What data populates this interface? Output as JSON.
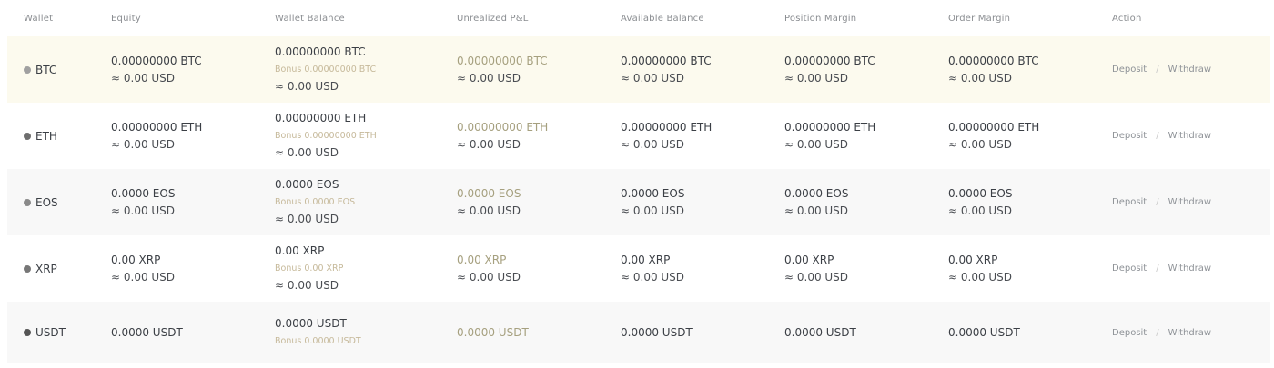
{
  "headers": {
    "wallet": "Wallet",
    "equity": "Equity",
    "wallet_balance": "Wallet Balance",
    "unrealized_pnl": "Unrealized P&L",
    "available_balance": "Available Balance",
    "position_margin": "Position Margin",
    "order_margin": "Order Margin",
    "action": "Action"
  },
  "colors": {
    "dot": "#a0a0a0",
    "dot_dark": "#555555",
    "highlight": "#fcfaee",
    "bonus": "#c6b99a"
  },
  "rows": [
    {
      "coin": "BTC",
      "equity": "0.00000000 BTC",
      "equity_usd": "≈ 0.00 USD",
      "wallet_balance": "0.00000000 BTC",
      "bonus": "Bonus 0.00000000 BTC",
      "wallet_usd": "≈ 0.00 USD",
      "pnl": "0.00000000 BTC",
      "pnl_usd": "≈ 0.00 USD",
      "available": "0.00000000 BTC",
      "available_usd": "≈ 0.00 USD",
      "position_margin": "0.00000000 BTC",
      "position_margin_usd": "≈ 0.00 USD",
      "order_margin": "0.00000000 BTC",
      "order_margin_usd": "≈ 0.00 USD",
      "deposit": "Deposit",
      "withdraw": "Withdraw",
      "separator": "/"
    },
    {
      "coin": "ETH",
      "equity": "0.00000000 ETH",
      "equity_usd": "≈ 0.00 USD",
      "wallet_balance": "0.00000000 ETH",
      "bonus": "Bonus 0.00000000 ETH",
      "wallet_usd": "≈ 0.00 USD",
      "pnl": "0.00000000 ETH",
      "pnl_usd": "≈ 0.00 USD",
      "available": "0.00000000 ETH",
      "available_usd": "≈ 0.00 USD",
      "position_margin": "0.00000000 ETH",
      "position_margin_usd": "≈ 0.00 USD",
      "order_margin": "0.00000000 ETH",
      "order_margin_usd": "≈ 0.00 USD",
      "deposit": "Deposit",
      "withdraw": "Withdraw",
      "separator": "/"
    },
    {
      "coin": "EOS",
      "equity": "0.0000 EOS",
      "equity_usd": "≈ 0.00 USD",
      "wallet_balance": "0.0000 EOS",
      "bonus": "Bonus 0.0000 EOS",
      "wallet_usd": "≈ 0.00 USD",
      "pnl": "0.0000 EOS",
      "pnl_usd": "≈ 0.00 USD",
      "available": "0.0000 EOS",
      "available_usd": "≈ 0.00 USD",
      "position_margin": "0.0000 EOS",
      "position_margin_usd": "≈ 0.00 USD",
      "order_margin": "0.0000 EOS",
      "order_margin_usd": "≈ 0.00 USD",
      "deposit": "Deposit",
      "withdraw": "Withdraw",
      "separator": "/"
    },
    {
      "coin": "XRP",
      "equity": "0.00 XRP",
      "equity_usd": "≈ 0.00 USD",
      "wallet_balance": "0.00 XRP",
      "bonus": "Bonus 0.00 XRP",
      "wallet_usd": "≈ 0.00 USD",
      "pnl": "0.00 XRP",
      "pnl_usd": "≈ 0.00 USD",
      "available": "0.00 XRP",
      "available_usd": "≈ 0.00 USD",
      "position_margin": "0.00 XRP",
      "position_margin_usd": "≈ 0.00 USD",
      "order_margin": "0.00 XRP",
      "order_margin_usd": "≈ 0.00 USD",
      "deposit": "Deposit",
      "withdraw": "Withdraw",
      "separator": "/"
    },
    {
      "coin": "USDT",
      "equity": "0.0000 USDT",
      "wallet_balance": "0.0000 USDT",
      "bonus": "Bonus 0.0000 USDT",
      "pnl": "0.0000 USDT",
      "available": "0.0000 USDT",
      "position_margin": "0.0000 USDT",
      "order_margin": "0.0000 USDT",
      "deposit": "Deposit",
      "withdraw": "Withdraw",
      "separator": "/"
    }
  ]
}
